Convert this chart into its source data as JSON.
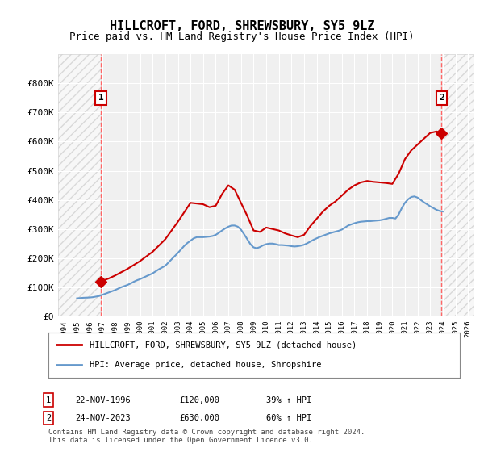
{
  "title": "HILLCROFT, FORD, SHREWSBURY, SY5 9LZ",
  "subtitle": "Price paid vs. HM Land Registry's House Price Index (HPI)",
  "background_color": "#ffffff",
  "plot_bg_color": "#f0f0f0",
  "hatch_color": "#d0d0d0",
  "grid_color": "#ffffff",
  "red_line_color": "#cc0000",
  "blue_line_color": "#6699cc",
  "dashed_line_color": "#ff6666",
  "annotation_box_color": "#cc0000",
  "ylim": [
    0,
    900000
  ],
  "yticks": [
    0,
    100000,
    200000,
    300000,
    400000,
    500000,
    600000,
    700000,
    800000
  ],
  "ytick_labels": [
    "£0",
    "£100K",
    "£200K",
    "£300K",
    "£400K",
    "£500K",
    "£600K",
    "£700K",
    "£800K"
  ],
  "xlim_start": 1993.5,
  "xlim_end": 2026.5,
  "xticks": [
    1994,
    1995,
    1996,
    1997,
    1998,
    1999,
    2000,
    2001,
    2002,
    2003,
    2004,
    2005,
    2006,
    2007,
    2008,
    2009,
    2010,
    2011,
    2012,
    2013,
    2014,
    2015,
    2016,
    2017,
    2018,
    2019,
    2020,
    2021,
    2022,
    2023,
    2024,
    2025,
    2026
  ],
  "hatch_end_year": 1996.9,
  "hatch_start_year2": 2024.0,
  "sale1_year": 1996.9,
  "sale1_price": 120000,
  "sale2_year": 2023.9,
  "sale2_price": 630000,
  "legend_label1": "HILLCROFT, FORD, SHREWSBURY, SY5 9LZ (detached house)",
  "legend_label2": "HPI: Average price, detached house, Shropshire",
  "annotation1_label": "1",
  "annotation2_label": "2",
  "ann1_x": 1996.9,
  "ann1_y": 750000,
  "ann2_x": 2023.9,
  "ann2_y": 750000,
  "table_row1": [
    "1",
    "22-NOV-1996",
    "£120,000",
    "39% ↑ HPI"
  ],
  "table_row2": [
    "2",
    "24-NOV-2023",
    "£630,000",
    "60% ↑ HPI"
  ],
  "footer": "Contains HM Land Registry data © Crown copyright and database right 2024.\nThis data is licensed under the Open Government Licence v3.0.",
  "hpi_data_x": [
    1995.0,
    1995.25,
    1995.5,
    1995.75,
    1996.0,
    1996.25,
    1996.5,
    1996.75,
    1997.0,
    1997.25,
    1997.5,
    1997.75,
    1998.0,
    1998.25,
    1998.5,
    1998.75,
    1999.0,
    1999.25,
    1999.5,
    1999.75,
    2000.0,
    2000.25,
    2000.5,
    2000.75,
    2001.0,
    2001.25,
    2001.5,
    2001.75,
    2002.0,
    2002.25,
    2002.5,
    2002.75,
    2003.0,
    2003.25,
    2003.5,
    2003.75,
    2004.0,
    2004.25,
    2004.5,
    2004.75,
    2005.0,
    2005.25,
    2005.5,
    2005.75,
    2006.0,
    2006.25,
    2006.5,
    2006.75,
    2007.0,
    2007.25,
    2007.5,
    2007.75,
    2008.0,
    2008.25,
    2008.5,
    2008.75,
    2009.0,
    2009.25,
    2009.5,
    2009.75,
    2010.0,
    2010.25,
    2010.5,
    2010.75,
    2011.0,
    2011.25,
    2011.5,
    2011.75,
    2012.0,
    2012.25,
    2012.5,
    2012.75,
    2013.0,
    2013.25,
    2013.5,
    2013.75,
    2014.0,
    2014.25,
    2014.5,
    2014.75,
    2015.0,
    2015.25,
    2015.5,
    2015.75,
    2016.0,
    2016.25,
    2016.5,
    2016.75,
    2017.0,
    2017.25,
    2017.5,
    2017.75,
    2018.0,
    2018.25,
    2018.5,
    2018.75,
    2019.0,
    2019.25,
    2019.5,
    2019.75,
    2020.0,
    2020.25,
    2020.5,
    2020.75,
    2021.0,
    2021.25,
    2021.5,
    2021.75,
    2022.0,
    2022.25,
    2022.5,
    2022.75,
    2023.0,
    2023.25,
    2023.5,
    2023.75,
    2024.0
  ],
  "hpi_data_y": [
    62000,
    63000,
    64000,
    64500,
    65000,
    66000,
    68000,
    70000,
    74000,
    78000,
    82000,
    86000,
    90000,
    95000,
    100000,
    104000,
    108000,
    113000,
    119000,
    124000,
    128000,
    133000,
    138000,
    143000,
    148000,
    155000,
    162000,
    168000,
    174000,
    185000,
    196000,
    207000,
    218000,
    230000,
    242000,
    252000,
    260000,
    268000,
    272000,
    272000,
    272000,
    273000,
    274000,
    276000,
    280000,
    287000,
    295000,
    302000,
    308000,
    312000,
    312000,
    308000,
    298000,
    282000,
    265000,
    248000,
    237000,
    234000,
    238000,
    244000,
    248000,
    250000,
    250000,
    248000,
    245000,
    245000,
    244000,
    243000,
    241000,
    240000,
    241000,
    243000,
    246000,
    251000,
    257000,
    263000,
    268000,
    273000,
    277000,
    281000,
    285000,
    288000,
    291000,
    294000,
    298000,
    305000,
    312000,
    316000,
    320000,
    323000,
    325000,
    326000,
    327000,
    327000,
    328000,
    329000,
    330000,
    332000,
    335000,
    338000,
    338000,
    336000,
    350000,
    372000,
    390000,
    402000,
    410000,
    412000,
    408000,
    400000,
    392000,
    385000,
    378000,
    372000,
    366000,
    362000,
    360000
  ],
  "red_line_x": [
    1996.9,
    1997.0,
    1997.5,
    1998.0,
    1999.0,
    2000.0,
    2001.0,
    2002.0,
    2003.0,
    2004.0,
    2005.0,
    2005.5,
    2006.0,
    2006.5,
    2007.0,
    2007.5,
    2008.0,
    2008.5,
    2009.0,
    2009.5,
    2010.0,
    2010.5,
    2011.0,
    2011.5,
    2012.0,
    2012.5,
    2013.0,
    2013.5,
    2014.0,
    2014.5,
    2015.0,
    2015.5,
    2016.0,
    2016.5,
    2017.0,
    2017.5,
    2018.0,
    2018.5,
    2019.0,
    2019.5,
    2020.0,
    2020.5,
    2021.0,
    2021.5,
    2022.0,
    2022.5,
    2023.0,
    2023.5,
    2023.9
  ],
  "red_line_y": [
    120000,
    122000,
    130000,
    140000,
    163000,
    190000,
    222000,
    265000,
    325000,
    390000,
    385000,
    375000,
    380000,
    420000,
    450000,
    435000,
    390000,
    345000,
    295000,
    290000,
    305000,
    300000,
    295000,
    285000,
    278000,
    272000,
    280000,
    310000,
    335000,
    360000,
    380000,
    395000,
    415000,
    435000,
    450000,
    460000,
    465000,
    462000,
    460000,
    458000,
    455000,
    490000,
    540000,
    570000,
    590000,
    610000,
    630000,
    635000,
    630000
  ]
}
